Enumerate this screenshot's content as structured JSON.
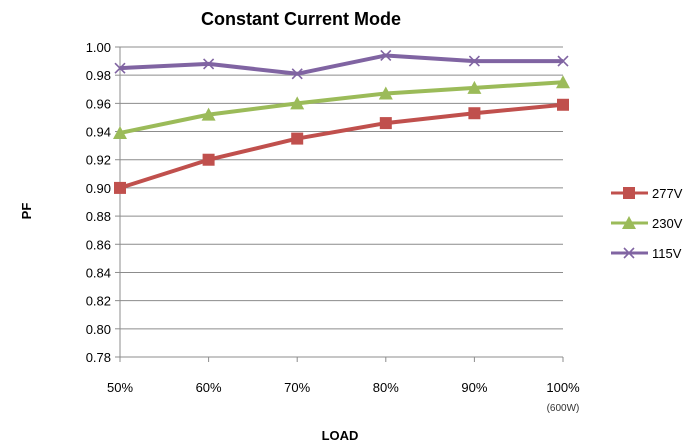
{
  "chart_data": {
    "type": "line",
    "title": "Constant Current Mode",
    "xlabel": "LOAD",
    "ylabel": "PF",
    "categories": [
      "50%",
      "60%",
      "70%",
      "80%",
      "90%",
      "100%"
    ],
    "x_note": "(600W)",
    "ylim": [
      0.78,
      1.0
    ],
    "y_ticks": [
      "0.78",
      "0.80",
      "0.82",
      "0.84",
      "0.86",
      "0.88",
      "0.90",
      "0.92",
      "0.94",
      "0.96",
      "0.98",
      "1.00"
    ],
    "grid": true,
    "legend_position": "right",
    "series": [
      {
        "name": "277V",
        "color": "#C0504D",
        "marker": "square",
        "values": [
          0.9,
          0.92,
          0.935,
          0.946,
          0.953,
          0.959
        ]
      },
      {
        "name": "230V",
        "color": "#9BBB59",
        "marker": "triangle",
        "values": [
          0.939,
          0.952,
          0.96,
          0.967,
          0.971,
          0.975
        ]
      },
      {
        "name": "115V",
        "color": "#8064A2",
        "marker": "x",
        "values": [
          0.985,
          0.988,
          0.981,
          0.994,
          0.99,
          0.99
        ]
      }
    ]
  }
}
